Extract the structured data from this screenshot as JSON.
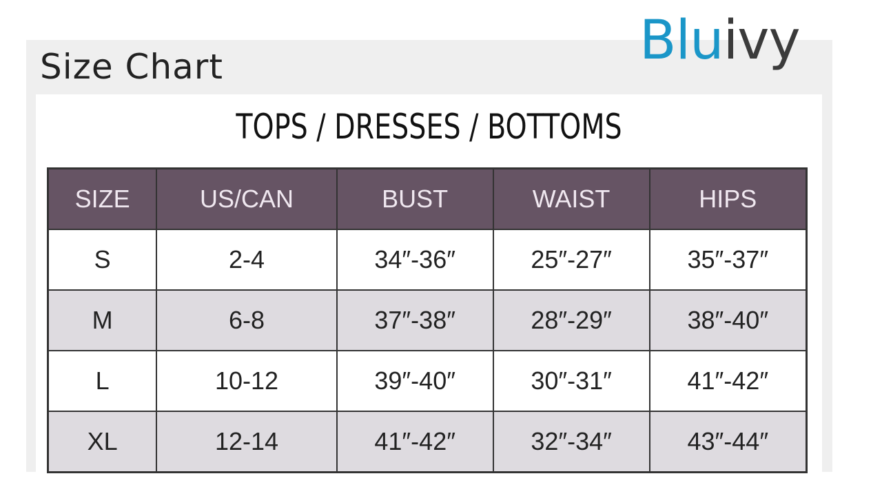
{
  "page_title": "Size Chart",
  "logo": {
    "part1": "Blu",
    "part2": "ivy",
    "colors": {
      "blue": "#1a96c8",
      "dark": "#3b3b3b"
    }
  },
  "chart": {
    "heading": "TOPS / DRESSES / BOTTOMS",
    "header_color": "#665464",
    "columns": [
      "SIZE",
      "US/CAN",
      "BUST",
      "WAIST",
      "HIPS"
    ],
    "rows": [
      [
        "S",
        "2-4",
        "34″-36″",
        "25″-27″",
        "35″-37″"
      ],
      [
        "M",
        "6-8",
        "37″-38″",
        "28″-29″",
        "38″-40″"
      ],
      [
        "L",
        "10-12",
        "39″-40″",
        "30″-31″",
        "41″-42″"
      ],
      [
        "XL",
        "12-14",
        "41″-42″",
        "32″-34″",
        "43″-44″"
      ]
    ]
  }
}
